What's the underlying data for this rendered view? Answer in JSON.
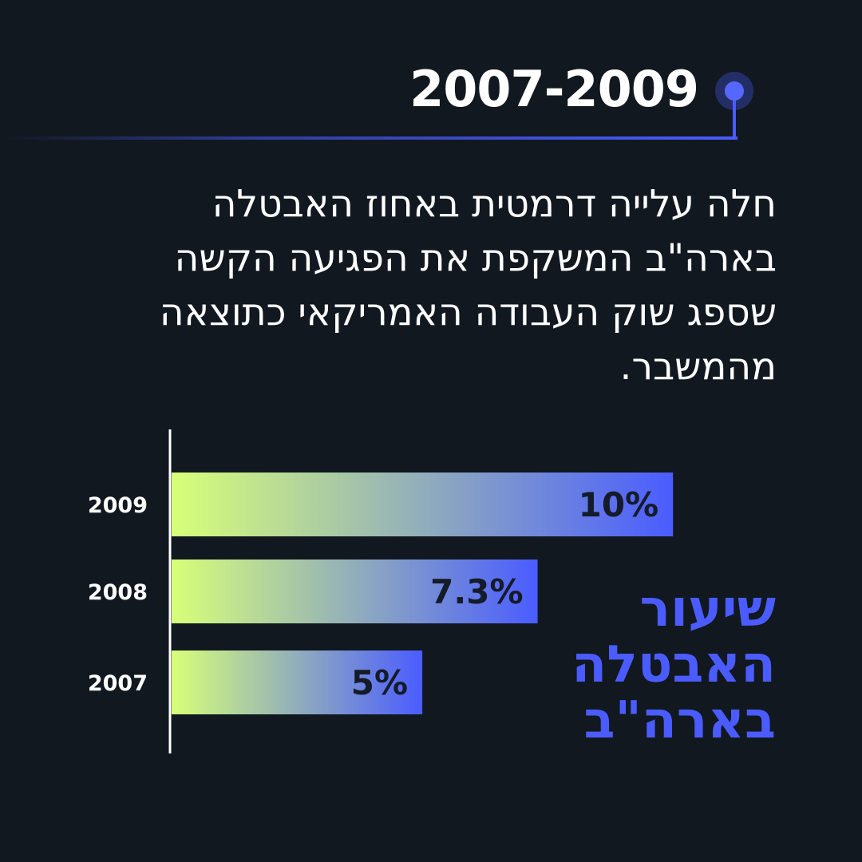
{
  "header": {
    "year_range": "2007-2009"
  },
  "paragraph": "חלה עלייה דרמטית באחוז האבטלה בארה\"ב המשקפת את הפגיעה הקשה שספג שוק העבודה האמריקאי כתוצאה מהמשבר.",
  "colors": {
    "background": "#111820",
    "accent": "#4a5cff",
    "bar_start": "#d8ff78",
    "bar_end": "#4a5cff"
  },
  "chart_data": {
    "type": "bar",
    "orientation": "horizontal",
    "title": "שיעור האבטלה בארה\"ב",
    "categories": [
      "2009",
      "2008",
      "2007"
    ],
    "values": [
      10,
      7.3,
      5
    ],
    "value_labels": [
      "10%",
      "7.3%",
      "5%"
    ],
    "xlim": [
      0,
      15.6
    ],
    "grid": false,
    "legend": "none"
  }
}
